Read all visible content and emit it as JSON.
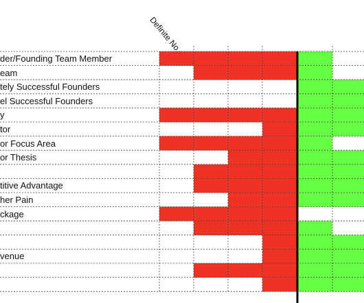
{
  "colors": {
    "red": "#ee3324",
    "green": "#66ff44",
    "white": "#ffffff",
    "divider": "#000000",
    "gridline": "#444444"
  },
  "chart_data": {
    "type": "heatmap",
    "column_headers": [
      "Definite No",
      "",
      "",
      "",
      "",
      ""
    ],
    "rows": [
      {
        "label": "der/Founding Team Member",
        "cells": [
          "red",
          "red",
          "red",
          "red",
          "green",
          "white"
        ]
      },
      {
        "label": "eam",
        "cells": [
          "white",
          "red",
          "red",
          "red",
          "green",
          "white"
        ]
      },
      {
        "label": "tely Successful Founders",
        "cells": [
          "white",
          "white",
          "white",
          "white",
          "green",
          "green"
        ]
      },
      {
        "label": "el Successful Founders",
        "cells": [
          "white",
          "white",
          "white",
          "white",
          "green",
          "green"
        ]
      },
      {
        "label": "y",
        "cells": [
          "red",
          "red",
          "red",
          "red",
          "green",
          "green"
        ]
      },
      {
        "label": "tor",
        "cells": [
          "white",
          "white",
          "white",
          "red",
          "green",
          "green"
        ]
      },
      {
        "label": "or Focus Area",
        "cells": [
          "red",
          "red",
          "red",
          "red",
          "green",
          "white"
        ]
      },
      {
        "label": "or Thesis",
        "cells": [
          "white",
          "white",
          "red",
          "red",
          "green",
          "green"
        ]
      },
      {
        "label": "",
        "cells": [
          "white",
          "red",
          "red",
          "red",
          "green",
          "green"
        ]
      },
      {
        "label": "titive Advantage",
        "cells": [
          "white",
          "red",
          "red",
          "red",
          "green",
          "green"
        ]
      },
      {
        "label": "her Pain",
        "cells": [
          "white",
          "white",
          "red",
          "red",
          "green",
          "green"
        ]
      },
      {
        "label": "ckage",
        "cells": [
          "red",
          "red",
          "red",
          "red",
          "white",
          "white"
        ]
      },
      {
        "label": "",
        "cells": [
          "white",
          "red",
          "red",
          "red",
          "green",
          "white"
        ]
      },
      {
        "label": "",
        "cells": [
          "white",
          "white",
          "white",
          "red",
          "green",
          "green"
        ]
      },
      {
        "label": "venue",
        "cells": [
          "white",
          "white",
          "white",
          "red",
          "green",
          "green"
        ]
      },
      {
        "label": "",
        "cells": [
          "white",
          "red",
          "red",
          "red",
          "green",
          "green"
        ]
      },
      {
        "label": "",
        "cells": [
          "white",
          "white",
          "white",
          "red",
          "green",
          "green"
        ]
      }
    ]
  }
}
